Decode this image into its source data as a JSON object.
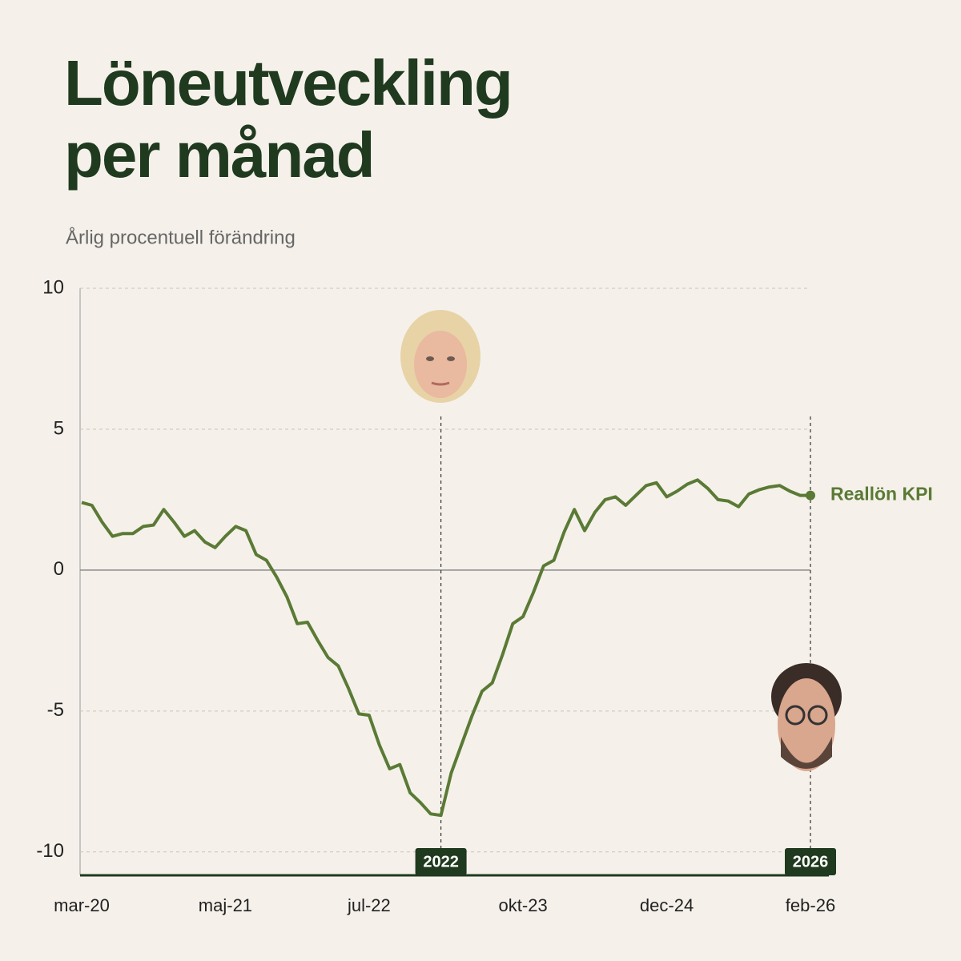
{
  "chart_data": {
    "type": "line",
    "title_lines": [
      "Löneutveckling",
      "per månad"
    ],
    "subtitle": "Årlig procentuell förändring",
    "categories": [
      "mar-20",
      null,
      null,
      null,
      null,
      null,
      null,
      null,
      null,
      null,
      null,
      null,
      null,
      null,
      "maj-21",
      null,
      null,
      null,
      null,
      null,
      null,
      null,
      null,
      null,
      null,
      null,
      null,
      null,
      "jul-22",
      null,
      null,
      null,
      null,
      null,
      null,
      null,
      null,
      null,
      null,
      null,
      null,
      null,
      null,
      "okt-23",
      null,
      null,
      null,
      null,
      null,
      null,
      null,
      null,
      null,
      null,
      null,
      null,
      null,
      "dec-24",
      null,
      null,
      null,
      null,
      null,
      null,
      null,
      null,
      null,
      null,
      null,
      null,
      null,
      "feb-26"
    ],
    "series": [
      {
        "name": "Reallön KPI",
        "color": "#5a7a35",
        "values": [
          2.4,
          2.3,
          1.7,
          1.2,
          1.3,
          1.3,
          1.55,
          1.6,
          2.15,
          1.7,
          1.2,
          1.4,
          1.0,
          0.8,
          1.2,
          1.55,
          1.4,
          0.55,
          0.35,
          -0.25,
          -0.95,
          -1.9,
          -1.85,
          -2.5,
          -3.1,
          -3.4,
          -4.2,
          -5.1,
          -5.15,
          -6.2,
          -7.05,
          -6.9,
          -7.9,
          -8.25,
          -8.65,
          -8.7,
          -7.2,
          -6.2,
          -5.2,
          -4.3,
          -4.0,
          -3.0,
          -1.9,
          -1.65,
          -0.8,
          0.15,
          0.35,
          1.35,
          2.15,
          1.4,
          2.05,
          2.5,
          2.6,
          2.3,
          2.65,
          3.0,
          3.1,
          2.6,
          2.8,
          3.05,
          3.2,
          2.9,
          2.5,
          2.45,
          2.25,
          2.7,
          2.85,
          2.95,
          3.0,
          2.8,
          2.65,
          2.65
        ]
      }
    ],
    "annotations": [
      {
        "text": "2022",
        "index": 35
      },
      {
        "text": "2026",
        "index": 71
      }
    ],
    "ylim": [
      -11,
      10
    ],
    "yticks": [
      -10,
      -5,
      0,
      5,
      10
    ],
    "grid": true
  }
}
